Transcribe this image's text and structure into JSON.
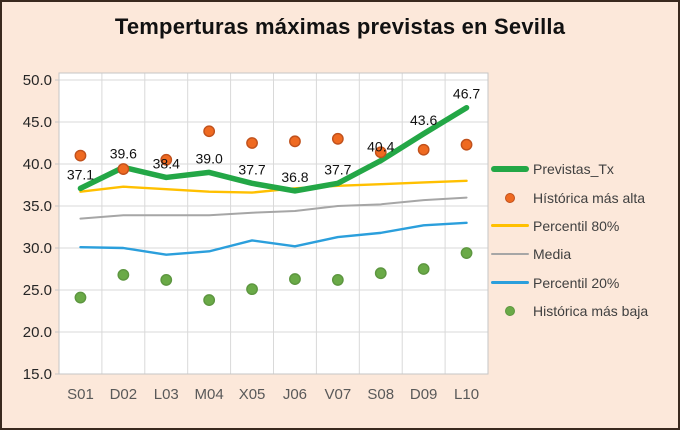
{
  "window": {
    "kind": "chart-image"
  },
  "colors": {
    "background": "#fce8da",
    "frame_border": "#39291e",
    "plot_background": "#ffffff",
    "gridline": "#d9d9d9",
    "plot_border": "#c6c6c6",
    "title_text": "#111111",
    "ytick_text": "#262626",
    "xtick_text": "#595959",
    "data_label_text": "#111111",
    "legend_text": "#404040"
  },
  "chart_data": {
    "type": "line",
    "title": "Temperturas máximas previstas en Sevilla",
    "xlabel": "",
    "ylabel": "",
    "categories": [
      "S01",
      "D02",
      "L03",
      "M04",
      "X05",
      "J06",
      "V07",
      "S08",
      "D09",
      "L10"
    ],
    "ylim": [
      15,
      50
    ],
    "ytick_step": 5,
    "ytick_labels": [
      "50.0",
      "45.0",
      "40.0",
      "35.0",
      "30.0",
      "25.0",
      "20.0",
      "15.0"
    ],
    "grid": true,
    "legend_position": "right",
    "series": [
      {
        "name": "Previstas_Tx",
        "marker": "thick-line",
        "color": "#23a746",
        "values": [
          37.1,
          39.6,
          38.4,
          39.0,
          37.7,
          36.8,
          37.7,
          40.4,
          43.6,
          46.7
        ],
        "data_labels": [
          "37.1",
          "39.6",
          "38.4",
          "39.0",
          "37.7",
          "36.8",
          "37.7",
          "40.4",
          "43.6",
          "46.7"
        ]
      },
      {
        "name": "Hístórica más alta",
        "marker": "dot",
        "color": "#ef6a21",
        "stroke": "#c0511c",
        "values": [
          41.0,
          39.4,
          40.5,
          43.9,
          42.5,
          42.7,
          43.0,
          41.4,
          41.7,
          42.3
        ]
      },
      {
        "name": "Percentil 80%",
        "marker": "line",
        "color": "#ffc000",
        "values": [
          36.7,
          37.3,
          37.0,
          36.7,
          36.6,
          37.1,
          37.4,
          37.6,
          37.8,
          38.0
        ]
      },
      {
        "name": "Media",
        "marker": "line",
        "color": "#a6a6a6",
        "values": [
          33.5,
          33.9,
          33.9,
          33.9,
          34.2,
          34.4,
          35.0,
          35.2,
          35.7,
          36.0
        ]
      },
      {
        "name": "Percentil 20%",
        "marker": "line",
        "color": "#2b9fdc",
        "values": [
          30.1,
          30.0,
          29.2,
          29.6,
          30.9,
          30.2,
          31.3,
          31.8,
          32.7,
          33.0
        ]
      },
      {
        "name": "Histórica más baja",
        "marker": "dot",
        "color": "#6aaa47",
        "stroke": "#5d9640",
        "values": [
          24.1,
          26.8,
          26.2,
          23.8,
          25.1,
          26.3,
          26.2,
          27.0,
          27.5,
          29.4
        ]
      }
    ]
  }
}
